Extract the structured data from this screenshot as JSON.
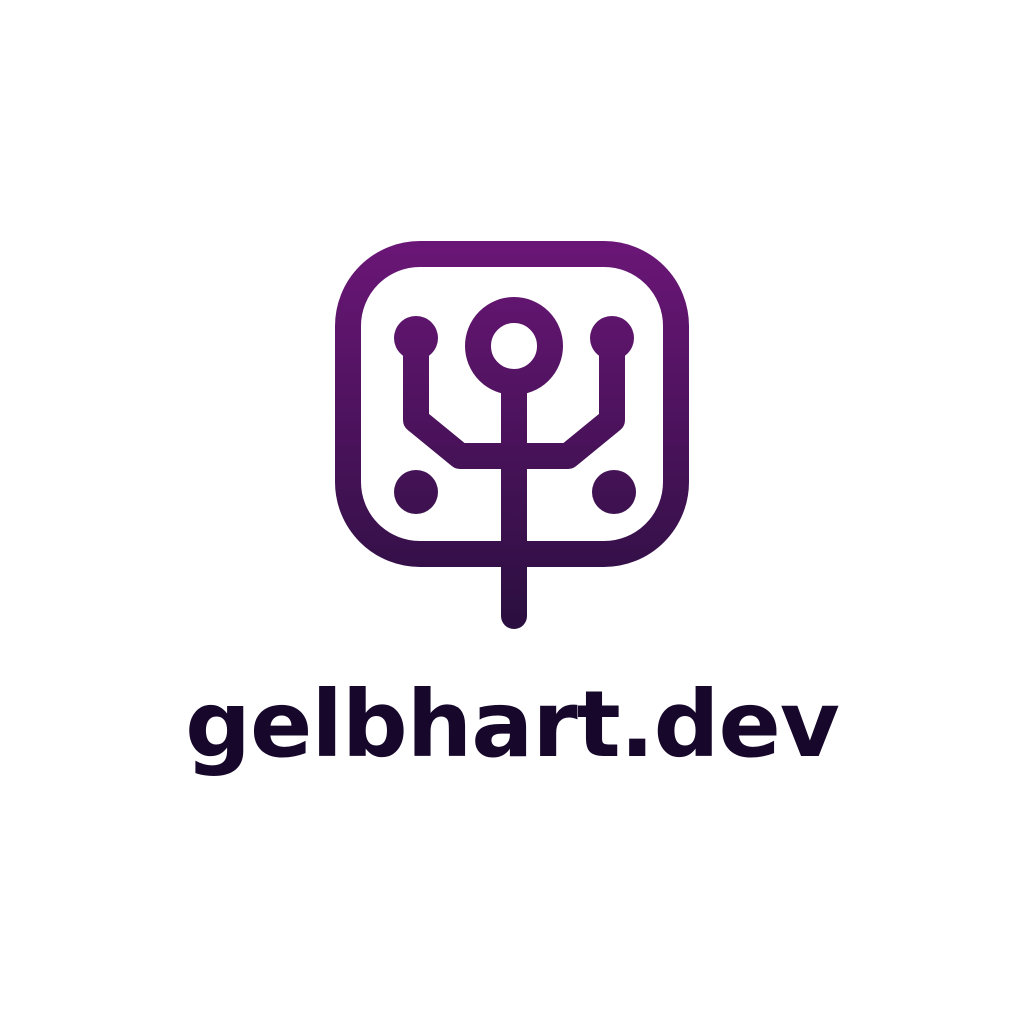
{
  "brand": {
    "name": "gelbhart.dev",
    "mark_icon": "circuit-node-square-icon"
  },
  "colors": {
    "background": "#ffffff",
    "mark_top": "#6b1677",
    "mark_bottom": "#2a0f3f",
    "wordmark": "#17082b"
  }
}
